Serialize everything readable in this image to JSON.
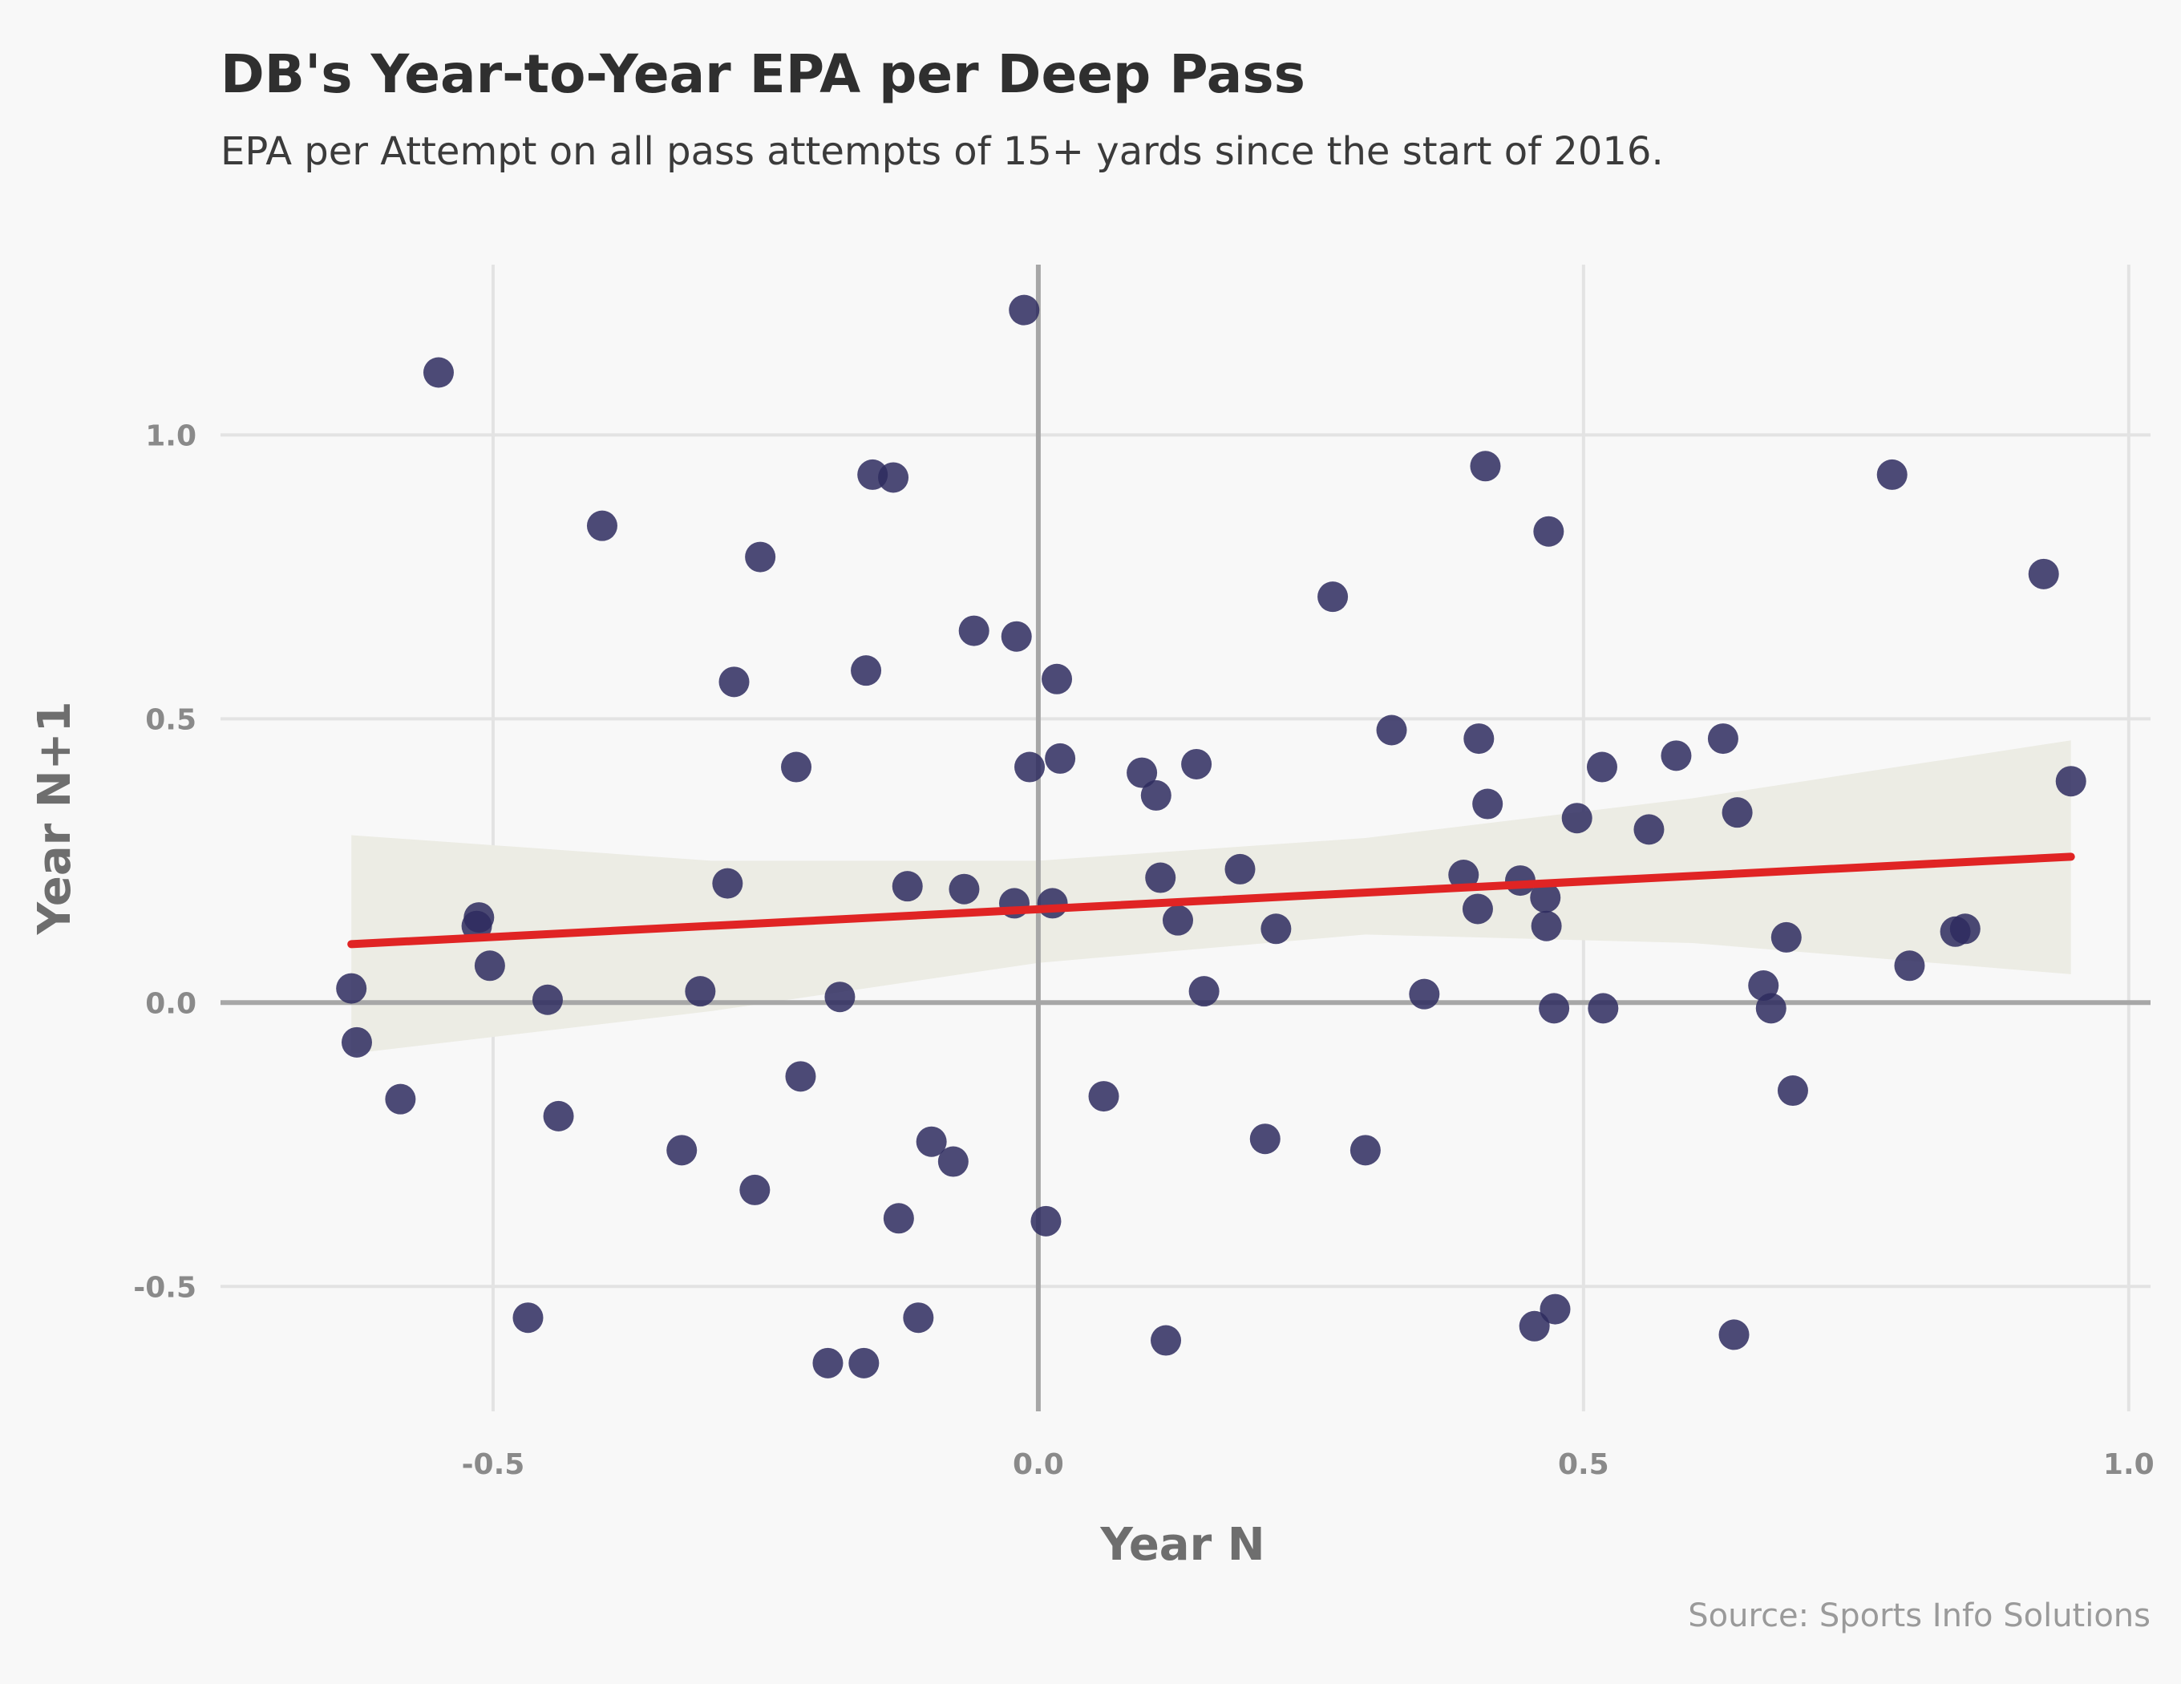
{
  "chart_data": {
    "type": "scatter",
    "title": "DB's Year-to-Year EPA per Deep Pass",
    "subtitle": "EPA per Attempt on all pass attempts of 15+ yards since the start of 2016.",
    "xlabel": "Year N",
    "ylabel": "Year N+1",
    "caption": "Source: Sports Info Solutions",
    "xlim": [
      -0.75,
      1.02
    ],
    "ylim": [
      -0.72,
      1.3
    ],
    "x_ticks": [
      -0.5,
      0.0,
      0.5,
      1.0
    ],
    "y_ticks": [
      -0.5,
      0.0,
      0.5,
      1.0
    ],
    "x_tick_labels": [
      "-0.5",
      "0.0",
      "0.5",
      "1.0"
    ],
    "y_tick_labels": [
      "-0.5",
      "0.0",
      "0.5",
      "1.0"
    ],
    "grid": true,
    "reference_lines": {
      "x": 0,
      "y": 0
    },
    "points": [
      {
        "x": -0.63,
        "y": 0.025
      },
      {
        "x": -0.625,
        "y": -0.07
      },
      {
        "x": -0.585,
        "y": -0.17
      },
      {
        "x": -0.55,
        "y": 1.11
      },
      {
        "x": -0.513,
        "y": 0.15
      },
      {
        "x": -0.515,
        "y": 0.135
      },
      {
        "x": -0.503,
        "y": 0.065
      },
      {
        "x": -0.468,
        "y": -0.555
      },
      {
        "x": -0.45,
        "y": 0.005
      },
      {
        "x": -0.44,
        "y": -0.2
      },
      {
        "x": -0.4,
        "y": 0.84
      },
      {
        "x": -0.327,
        "y": -0.26
      },
      {
        "x": -0.31,
        "y": 0.02
      },
      {
        "x": -0.285,
        "y": 0.21
      },
      {
        "x": -0.279,
        "y": 0.565
      },
      {
        "x": -0.26,
        "y": -0.33
      },
      {
        "x": -0.255,
        "y": 0.785
      },
      {
        "x": -0.222,
        "y": 0.415
      },
      {
        "x": -0.218,
        "y": -0.13
      },
      {
        "x": -0.193,
        "y": -0.635
      },
      {
        "x": -0.182,
        "y": 0.01
      },
      {
        "x": -0.16,
        "y": -0.635
      },
      {
        "x": -0.158,
        "y": 0.585
      },
      {
        "x": -0.152,
        "y": 0.93
      },
      {
        "x": -0.133,
        "y": 0.925
      },
      {
        "x": -0.128,
        "y": -0.38
      },
      {
        "x": -0.12,
        "y": 0.205
      },
      {
        "x": -0.11,
        "y": -0.555
      },
      {
        "x": -0.098,
        "y": -0.245
      },
      {
        "x": -0.078,
        "y": -0.28
      },
      {
        "x": -0.068,
        "y": 0.2
      },
      {
        "x": -0.059,
        "y": 0.655
      },
      {
        "x": -0.022,
        "y": 0.175
      },
      {
        "x": -0.02,
        "y": 0.645
      },
      {
        "x": -0.013,
        "y": 1.22
      },
      {
        "x": -0.008,
        "y": 0.415
      },
      {
        "x": 0.007,
        "y": -0.385
      },
      {
        "x": 0.013,
        "y": 0.175
      },
      {
        "x": 0.017,
        "y": 0.57
      },
      {
        "x": 0.02,
        "y": 0.43
      },
      {
        "x": 0.06,
        "y": -0.165
      },
      {
        "x": 0.095,
        "y": 0.405
      },
      {
        "x": 0.108,
        "y": 0.365
      },
      {
        "x": 0.112,
        "y": 0.22
      },
      {
        "x": 0.117,
        "y": -0.595
      },
      {
        "x": 0.128,
        "y": 0.145
      },
      {
        "x": 0.145,
        "y": 0.42
      },
      {
        "x": 0.152,
        "y": 0.02
      },
      {
        "x": 0.185,
        "y": 0.235
      },
      {
        "x": 0.208,
        "y": -0.24
      },
      {
        "x": 0.218,
        "y": 0.13
      },
      {
        "x": 0.27,
        "y": 0.715
      },
      {
        "x": 0.3,
        "y": -0.26
      },
      {
        "x": 0.324,
        "y": 0.48
      },
      {
        "x": 0.354,
        "y": 0.015
      },
      {
        "x": 0.39,
        "y": 0.225
      },
      {
        "x": 0.403,
        "y": 0.165
      },
      {
        "x": 0.404,
        "y": 0.465
      },
      {
        "x": 0.41,
        "y": 0.945
      },
      {
        "x": 0.412,
        "y": 0.35
      },
      {
        "x": 0.442,
        "y": 0.215
      },
      {
        "x": 0.455,
        "y": -0.57
      },
      {
        "x": 0.465,
        "y": 0.185
      },
      {
        "x": 0.466,
        "y": 0.135
      },
      {
        "x": 0.468,
        "y": 0.83
      },
      {
        "x": 0.473,
        "y": -0.01
      },
      {
        "x": 0.474,
        "y": -0.54
      },
      {
        "x": 0.494,
        "y": 0.325
      },
      {
        "x": 0.517,
        "y": 0.415
      },
      {
        "x": 0.518,
        "y": -0.01
      },
      {
        "x": 0.56,
        "y": 0.305
      },
      {
        "x": 0.585,
        "y": 0.435
      },
      {
        "x": 0.628,
        "y": 0.465
      },
      {
        "x": 0.638,
        "y": -0.585
      },
      {
        "x": 0.641,
        "y": 0.335
      },
      {
        "x": 0.665,
        "y": 0.03
      },
      {
        "x": 0.672,
        "y": -0.01
      },
      {
        "x": 0.686,
        "y": 0.115
      },
      {
        "x": 0.692,
        "y": -0.155
      },
      {
        "x": 0.783,
        "y": 0.93
      },
      {
        "x": 0.799,
        "y": 0.065
      },
      {
        "x": 0.841,
        "y": 0.125
      },
      {
        "x": 0.85,
        "y": 0.13
      },
      {
        "x": 0.922,
        "y": 0.755
      },
      {
        "x": 0.947,
        "y": 0.39
      }
    ],
    "fit_line": {
      "x": [
        -0.63,
        0.947
      ],
      "y": [
        0.103,
        0.257
      ],
      "ci": [
        {
          "x": -0.63,
          "lo": -0.09,
          "hi": 0.295
        },
        {
          "x": -0.3,
          "lo": -0.015,
          "hi": 0.25
        },
        {
          "x": 0.0,
          "lo": 0.07,
          "hi": 0.25
        },
        {
          "x": 0.3,
          "lo": 0.12,
          "hi": 0.29
        },
        {
          "x": 0.6,
          "lo": 0.105,
          "hi": 0.36
        },
        {
          "x": 0.947,
          "lo": 0.05,
          "hi": 0.462
        }
      ]
    },
    "colors": {
      "background": "#f8f8f8",
      "point": "#2e2b5f",
      "fit_line": "#e02424",
      "ci_band": "#ecece4",
      "grid": "#e3e3e3",
      "zero_line": "#a7a7a7"
    }
  }
}
